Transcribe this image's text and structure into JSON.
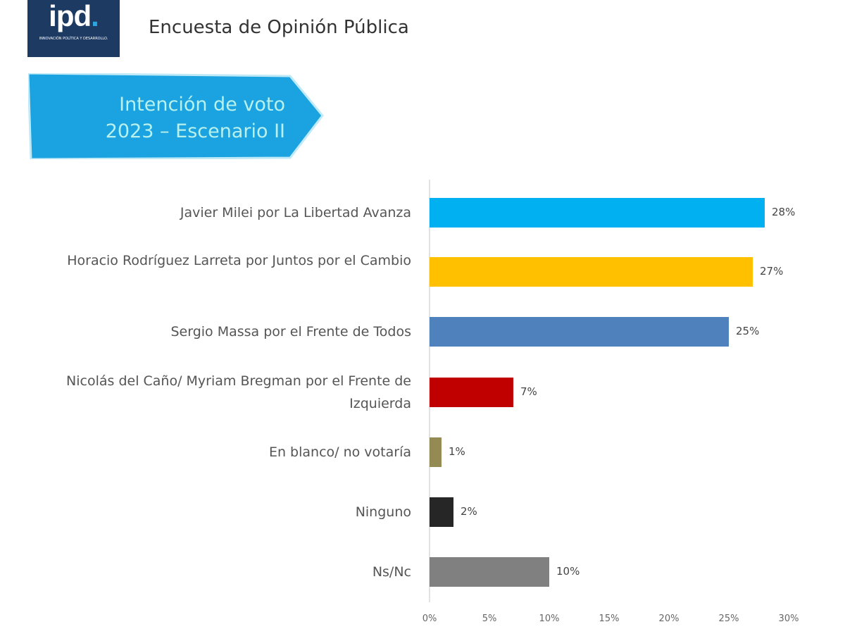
{
  "logo": {
    "text": "ipd",
    "subtitle": "INNOVACIÓN POLÍTICA Y DESARROLLO."
  },
  "header": {
    "title": "Encuesta de Opinión Pública"
  },
  "banner": {
    "line1": "Intención de voto",
    "line2": "2023 – Escenario II"
  },
  "chart_data": {
    "type": "bar",
    "orientation": "horizontal",
    "categories": [
      "Javier Milei por La Libertad Avanza",
      "Horacio Rodríguez Larreta por Juntos por el Cambio",
      "Sergio Massa por el Frente de Todos",
      "Nicolás del Caño/ Myriam Bregman por el Frente de Izquierda",
      "En blanco/ no votaría",
      "Ninguno",
      "Ns/Nc"
    ],
    "values": [
      28,
      27,
      25,
      7,
      1,
      2,
      10
    ],
    "data_labels": [
      "28%",
      "27%",
      "25%",
      "7%",
      "1%",
      "2%",
      "10%"
    ],
    "colors": [
      "#00b0f0",
      "#ffc000",
      "#4f81bd",
      "#c00000",
      "#948a54",
      "#262626",
      "#808080"
    ],
    "xlim": [
      0,
      30
    ],
    "xticks": [
      "0%",
      "5%",
      "10%",
      "15%",
      "20%",
      "25%",
      "30%"
    ],
    "grid": false
  }
}
